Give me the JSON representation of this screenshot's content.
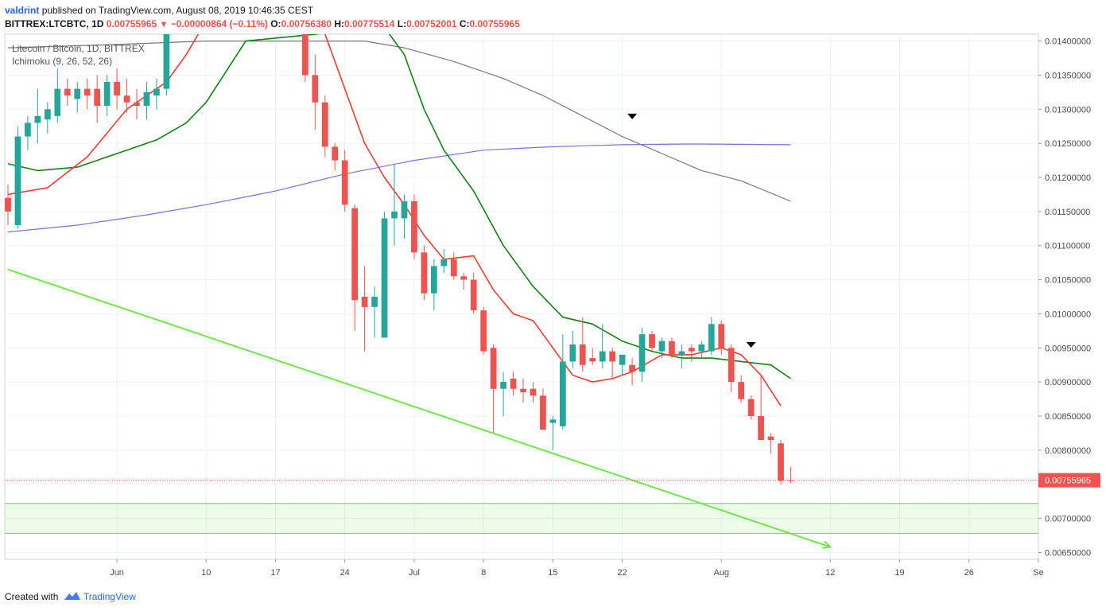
{
  "header": {
    "author": "valdrint",
    "published": "published on TradingView.com, August 08, 2019 10:46:35 CEST",
    "symbol": "BITTREX:LTCBTC, 1D",
    "price": "0.00755965",
    "change": "−0.00000864 (−0.11%)",
    "o_label": "O:",
    "o_value": "0.00756380",
    "h_label": "H:",
    "h_value": "0.00775514",
    "l_label": "L:",
    "l_value": "0.00752001",
    "c_label": "C:",
    "c_value": "0.00755965"
  },
  "legend": {
    "title": "Litecoin / Bitcoin, 1D, BITTREX",
    "indicator": "Ichimoku (9, 26, 52, 26)"
  },
  "footer": {
    "created_with": "Created with",
    "brand": "TradingView"
  },
  "colors": {
    "bull": "#26a69a",
    "bear": "#ef5350",
    "ma_red": "#f23b32",
    "ma_green": "#118011",
    "ma_gray": "#777777",
    "ma_blue": "#7b6fe0",
    "trendline": "#6fe64a",
    "support_zone": "#6fe64a",
    "last_price_tag": "#ef5350",
    "grid": "#edf0f5",
    "axis_text": "#4a4a4a"
  },
  "chart_data": {
    "type": "candlestick",
    "y_scale": "linear",
    "ylim": [
      0.0064,
      0.0141
    ],
    "x_range": [
      "2019-05-21",
      "2019-09-02"
    ],
    "y_ticks": [
      "0.00650000",
      "0.00700000",
      "0.00750000",
      "0.00800000",
      "0.00850000",
      "0.00900000",
      "0.00950000",
      "0.01000000",
      "0.01050000",
      "0.01100000",
      "0.01150000",
      "0.01200000",
      "0.01250000",
      "0.01300000",
      "0.01350000",
      "0.01400000"
    ],
    "x_ticks": [
      {
        "date": "2019-06-01",
        "label": "Jun"
      },
      {
        "date": "2019-06-10",
        "label": "10"
      },
      {
        "date": "2019-06-17",
        "label": "17"
      },
      {
        "date": "2019-06-24",
        "label": "24"
      },
      {
        "date": "2019-07-01",
        "label": "Jul"
      },
      {
        "date": "2019-07-08",
        "label": "8"
      },
      {
        "date": "2019-07-15",
        "label": "15"
      },
      {
        "date": "2019-07-22",
        "label": "22"
      },
      {
        "date": "2019-08-01",
        "label": "Aug"
      },
      {
        "date": "2019-08-12",
        "label": "12"
      },
      {
        "date": "2019-08-19",
        "label": "19"
      },
      {
        "date": "2019-08-26",
        "label": "26"
      },
      {
        "date": "2019-09-02",
        "label": "Se"
      }
    ],
    "last_price": 0.00755965,
    "last_price_label": "0.00755965",
    "grid": true,
    "candles": [
      {
        "d": "2019-05-21",
        "o": 0.0117,
        "h": 0.0119,
        "l": 0.0113,
        "c": 0.0115
      },
      {
        "d": "2019-05-22",
        "o": 0.0113,
        "h": 0.01275,
        "l": 0.01125,
        "c": 0.0126
      },
      {
        "d": "2019-05-23",
        "o": 0.0126,
        "h": 0.0129,
        "l": 0.0124,
        "c": 0.0128
      },
      {
        "d": "2019-05-24",
        "o": 0.0128,
        "h": 0.0133,
        "l": 0.0125,
        "c": 0.0129
      },
      {
        "d": "2019-05-25",
        "o": 0.01285,
        "h": 0.0131,
        "l": 0.01265,
        "c": 0.013
      },
      {
        "d": "2019-05-26",
        "o": 0.0129,
        "h": 0.0136,
        "l": 0.0128,
        "c": 0.0133
      },
      {
        "d": "2019-05-27",
        "o": 0.0133,
        "h": 0.01345,
        "l": 0.01305,
        "c": 0.0132
      },
      {
        "d": "2019-05-28",
        "o": 0.01315,
        "h": 0.0134,
        "l": 0.01295,
        "c": 0.0133
      },
      {
        "d": "2019-05-29",
        "o": 0.0133,
        "h": 0.01345,
        "l": 0.013,
        "c": 0.0132
      },
      {
        "d": "2019-05-30",
        "o": 0.0133,
        "h": 0.0135,
        "l": 0.0128,
        "c": 0.01305
      },
      {
        "d": "2019-05-31",
        "o": 0.01305,
        "h": 0.0135,
        "l": 0.0129,
        "c": 0.0134
      },
      {
        "d": "2019-06-01",
        "o": 0.0134,
        "h": 0.0136,
        "l": 0.013,
        "c": 0.0132
      },
      {
        "d": "2019-06-02",
        "o": 0.0132,
        "h": 0.01345,
        "l": 0.01295,
        "c": 0.0131
      },
      {
        "d": "2019-06-03",
        "o": 0.0131,
        "h": 0.0133,
        "l": 0.01285,
        "c": 0.01305
      },
      {
        "d": "2019-06-04",
        "o": 0.01305,
        "h": 0.0134,
        "l": 0.01285,
        "c": 0.01325
      },
      {
        "d": "2019-06-05",
        "o": 0.0132,
        "h": 0.01345,
        "l": 0.013,
        "c": 0.0133
      },
      {
        "d": "2019-06-06",
        "o": 0.0133,
        "h": 0.015,
        "l": 0.0132,
        "c": 0.0145
      },
      {
        "d": "2019-06-20",
        "o": 0.0146,
        "h": 0.0147,
        "l": 0.0134,
        "c": 0.0135
      },
      {
        "d": "2019-06-21",
        "o": 0.0135,
        "h": 0.0138,
        "l": 0.0127,
        "c": 0.0131
      },
      {
        "d": "2019-06-22",
        "o": 0.0131,
        "h": 0.0132,
        "l": 0.0123,
        "c": 0.01245
      },
      {
        "d": "2019-06-23",
        "o": 0.01245,
        "h": 0.0125,
        "l": 0.0121,
        "c": 0.01225
      },
      {
        "d": "2019-06-24",
        "o": 0.01225,
        "h": 0.0124,
        "l": 0.0115,
        "c": 0.0116
      },
      {
        "d": "2019-06-25",
        "o": 0.01155,
        "h": 0.0116,
        "l": 0.00975,
        "c": 0.0102
      },
      {
        "d": "2019-06-26",
        "o": 0.01025,
        "h": 0.0107,
        "l": 0.00945,
        "c": 0.0101
      },
      {
        "d": "2019-06-27",
        "o": 0.0101,
        "h": 0.0104,
        "l": 0.00965,
        "c": 0.01025
      },
      {
        "d": "2019-06-28",
        "o": 0.00965,
        "h": 0.0115,
        "l": 0.00965,
        "c": 0.0114
      },
      {
        "d": "2019-06-29",
        "o": 0.0114,
        "h": 0.0122,
        "l": 0.011,
        "c": 0.0115
      },
      {
        "d": "2019-06-30",
        "o": 0.0114,
        "h": 0.01175,
        "l": 0.0111,
        "c": 0.01165
      },
      {
        "d": "2019-07-01",
        "o": 0.01165,
        "h": 0.01175,
        "l": 0.0108,
        "c": 0.0109
      },
      {
        "d": "2019-07-02",
        "o": 0.0109,
        "h": 0.011,
        "l": 0.0102,
        "c": 0.0103
      },
      {
        "d": "2019-07-03",
        "o": 0.0103,
        "h": 0.0108,
        "l": 0.01005,
        "c": 0.0107
      },
      {
        "d": "2019-07-04",
        "o": 0.0107,
        "h": 0.01095,
        "l": 0.0106,
        "c": 0.0108
      },
      {
        "d": "2019-07-05",
        "o": 0.0108,
        "h": 0.0109,
        "l": 0.0105,
        "c": 0.01055
      },
      {
        "d": "2019-07-06",
        "o": 0.01055,
        "h": 0.0106,
        "l": 0.01035,
        "c": 0.0105
      },
      {
        "d": "2019-07-07",
        "o": 0.0105,
        "h": 0.0106,
        "l": 0.01,
        "c": 0.01005
      },
      {
        "d": "2019-07-08",
        "o": 0.01005,
        "h": 0.0101,
        "l": 0.0094,
        "c": 0.00945
      },
      {
        "d": "2019-07-09",
        "o": 0.0095,
        "h": 0.00955,
        "l": 0.00825,
        "c": 0.0089
      },
      {
        "d": "2019-07-10",
        "o": 0.0089,
        "h": 0.00915,
        "l": 0.0085,
        "c": 0.009
      },
      {
        "d": "2019-07-11",
        "o": 0.00905,
        "h": 0.00915,
        "l": 0.0088,
        "c": 0.0089
      },
      {
        "d": "2019-07-12",
        "o": 0.0089,
        "h": 0.00905,
        "l": 0.0087,
        "c": 0.00885
      },
      {
        "d": "2019-07-13",
        "o": 0.0089,
        "h": 0.009,
        "l": 0.0087,
        "c": 0.0088
      },
      {
        "d": "2019-07-14",
        "o": 0.0088,
        "h": 0.0089,
        "l": 0.0083,
        "c": 0.0083
      },
      {
        "d": "2019-07-15",
        "o": 0.0084,
        "h": 0.0085,
        "l": 0.008,
        "c": 0.00845
      },
      {
        "d": "2019-07-16",
        "o": 0.00835,
        "h": 0.0097,
        "l": 0.0083,
        "c": 0.0093
      },
      {
        "d": "2019-07-17",
        "o": 0.0093,
        "h": 0.00975,
        "l": 0.0092,
        "c": 0.00955
      },
      {
        "d": "2019-07-18",
        "o": 0.00955,
        "h": 0.00995,
        "l": 0.00915,
        "c": 0.00925
      },
      {
        "d": "2019-07-19",
        "o": 0.00935,
        "h": 0.0095,
        "l": 0.00925,
        "c": 0.0093
      },
      {
        "d": "2019-07-20",
        "o": 0.0093,
        "h": 0.00985,
        "l": 0.0092,
        "c": 0.00945
      },
      {
        "d": "2019-07-21",
        "o": 0.00945,
        "h": 0.0095,
        "l": 0.00905,
        "c": 0.0093
      },
      {
        "d": "2019-07-22",
        "o": 0.00925,
        "h": 0.00935,
        "l": 0.0091,
        "c": 0.0094
      },
      {
        "d": "2019-07-23",
        "o": 0.00925,
        "h": 0.00935,
        "l": 0.00895,
        "c": 0.00915
      },
      {
        "d": "2019-07-24",
        "o": 0.00915,
        "h": 0.0098,
        "l": 0.009,
        "c": 0.0097
      },
      {
        "d": "2019-07-25",
        "o": 0.0097,
        "h": 0.00975,
        "l": 0.00945,
        "c": 0.0095
      },
      {
        "d": "2019-07-26",
        "o": 0.00945,
        "h": 0.00965,
        "l": 0.00935,
        "c": 0.0096
      },
      {
        "d": "2019-07-27",
        "o": 0.0096,
        "h": 0.00965,
        "l": 0.00935,
        "c": 0.0094
      },
      {
        "d": "2019-07-28",
        "o": 0.0094,
        "h": 0.00955,
        "l": 0.0092,
        "c": 0.00945
      },
      {
        "d": "2019-07-29",
        "o": 0.0095,
        "h": 0.00955,
        "l": 0.0093,
        "c": 0.00945
      },
      {
        "d": "2019-07-30",
        "o": 0.00945,
        "h": 0.0096,
        "l": 0.00935,
        "c": 0.00955
      },
      {
        "d": "2019-07-31",
        "o": 0.00945,
        "h": 0.00995,
        "l": 0.0094,
        "c": 0.00985
      },
      {
        "d": "2019-08-01",
        "o": 0.00985,
        "h": 0.0099,
        "l": 0.0094,
        "c": 0.0095
      },
      {
        "d": "2019-08-02",
        "o": 0.0095,
        "h": 0.00955,
        "l": 0.00885,
        "c": 0.009
      },
      {
        "d": "2019-08-03",
        "o": 0.009,
        "h": 0.0091,
        "l": 0.0087,
        "c": 0.00875
      },
      {
        "d": "2019-08-04",
        "o": 0.00875,
        "h": 0.0088,
        "l": 0.00845,
        "c": 0.0085
      },
      {
        "d": "2019-08-05",
        "o": 0.0085,
        "h": 0.0091,
        "l": 0.00815,
        "c": 0.00815
      },
      {
        "d": "2019-08-06",
        "o": 0.0082,
        "h": 0.00825,
        "l": 0.00795,
        "c": 0.00815
      },
      {
        "d": "2019-08-07",
        "o": 0.0081,
        "h": 0.00815,
        "l": 0.0075,
        "c": 0.00755
      },
      {
        "d": "2019-08-08",
        "o": 0.0075638,
        "h": 0.00775514,
        "l": 0.00752001,
        "c": 0.00755965
      }
    ],
    "ma_red": [
      [
        "2019-05-21",
        0.01175
      ],
      [
        "2019-05-25",
        0.01185
      ],
      [
        "2019-05-29",
        0.0123
      ],
      [
        "2019-06-02",
        0.013
      ],
      [
        "2019-06-06",
        0.0134
      ],
      [
        "2019-06-08",
        0.0138
      ],
      [
        "2019-06-10",
        0.0143
      ],
      [
        "2019-06-20",
        0.0148
      ],
      [
        "2019-06-22",
        0.0141
      ],
      [
        "2019-06-24",
        0.0133
      ],
      [
        "2019-06-26",
        0.0125
      ],
      [
        "2019-06-28",
        0.012
      ],
      [
        "2019-06-30",
        0.0116
      ],
      [
        "2019-07-02",
        0.01115
      ],
      [
        "2019-07-04",
        0.0108
      ],
      [
        "2019-07-07",
        0.01085
      ],
      [
        "2019-07-09",
        0.01035
      ],
      [
        "2019-07-11",
        0.01
      ],
      [
        "2019-07-13",
        0.0099
      ],
      [
        "2019-07-15",
        0.0095
      ],
      [
        "2019-07-17",
        0.0091
      ],
      [
        "2019-07-19",
        0.009
      ],
      [
        "2019-07-21",
        0.00905
      ],
      [
        "2019-07-23",
        0.00915
      ],
      [
        "2019-07-26",
        0.0094
      ],
      [
        "2019-07-29",
        0.0094
      ],
      [
        "2019-08-01",
        0.0095
      ],
      [
        "2019-08-03",
        0.0094
      ],
      [
        "2019-08-05",
        0.0091
      ],
      [
        "2019-08-07",
        0.00865
      ]
    ],
    "ma_green": [
      [
        "2019-05-21",
        0.0122
      ],
      [
        "2019-05-24",
        0.0121
      ],
      [
        "2019-05-28",
        0.01215
      ],
      [
        "2019-06-01",
        0.01235
      ],
      [
        "2019-06-05",
        0.01255
      ],
      [
        "2019-06-08",
        0.0128
      ],
      [
        "2019-06-10",
        0.0131
      ],
      [
        "2019-06-14",
        0.014
      ],
      [
        "2019-06-28",
        0.0142
      ],
      [
        "2019-06-30",
        0.0138
      ],
      [
        "2019-07-02",
        0.013
      ],
      [
        "2019-07-04",
        0.0124
      ],
      [
        "2019-07-07",
        0.0118
      ],
      [
        "2019-07-10",
        0.011
      ],
      [
        "2019-07-13",
        0.0104
      ],
      [
        "2019-07-16",
        0.00995
      ],
      [
        "2019-07-19",
        0.00985
      ],
      [
        "2019-07-22",
        0.0096
      ],
      [
        "2019-07-25",
        0.00945
      ],
      [
        "2019-07-28",
        0.00935
      ],
      [
        "2019-07-31",
        0.00935
      ],
      [
        "2019-08-03",
        0.0093
      ],
      [
        "2019-08-06",
        0.00925
      ],
      [
        "2019-08-08",
        0.00905
      ]
    ],
    "ma_gray": [
      [
        "2019-05-21",
        0.0139
      ],
      [
        "2019-06-01",
        0.01395
      ],
      [
        "2019-06-10",
        0.014
      ],
      [
        "2019-06-26",
        0.014
      ],
      [
        "2019-06-30",
        0.0139
      ],
      [
        "2019-07-05",
        0.0137
      ],
      [
        "2019-07-10",
        0.01345
      ],
      [
        "2019-07-14",
        0.0132
      ],
      [
        "2019-07-18",
        0.0129
      ],
      [
        "2019-07-22",
        0.0126
      ],
      [
        "2019-07-26",
        0.01235
      ],
      [
        "2019-07-30",
        0.0121
      ],
      [
        "2019-08-03",
        0.01195
      ],
      [
        "2019-08-08",
        0.01165
      ]
    ],
    "ma_blue": [
      [
        "2019-05-21",
        0.0112
      ],
      [
        "2019-05-28",
        0.0113
      ],
      [
        "2019-06-04",
        0.01145
      ],
      [
        "2019-06-10",
        0.0116
      ],
      [
        "2019-06-17",
        0.0118
      ],
      [
        "2019-06-24",
        0.01205
      ],
      [
        "2019-07-01",
        0.01225
      ],
      [
        "2019-07-08",
        0.0124
      ],
      [
        "2019-07-15",
        0.01245
      ],
      [
        "2019-07-22",
        0.01248
      ],
      [
        "2019-07-29",
        0.01249
      ],
      [
        "2019-08-08",
        0.01248
      ]
    ],
    "trendline": {
      "from": [
        "2019-05-21",
        0.01065
      ],
      "to": [
        "2019-08-12",
        0.00658
      ]
    },
    "support_zone": {
      "top": 0.00722,
      "bottom": 0.00678
    },
    "markers": [
      {
        "d": "2019-07-23",
        "y": 0.0129
      },
      {
        "d": "2019-08-04",
        "y": 0.00955
      }
    ]
  }
}
